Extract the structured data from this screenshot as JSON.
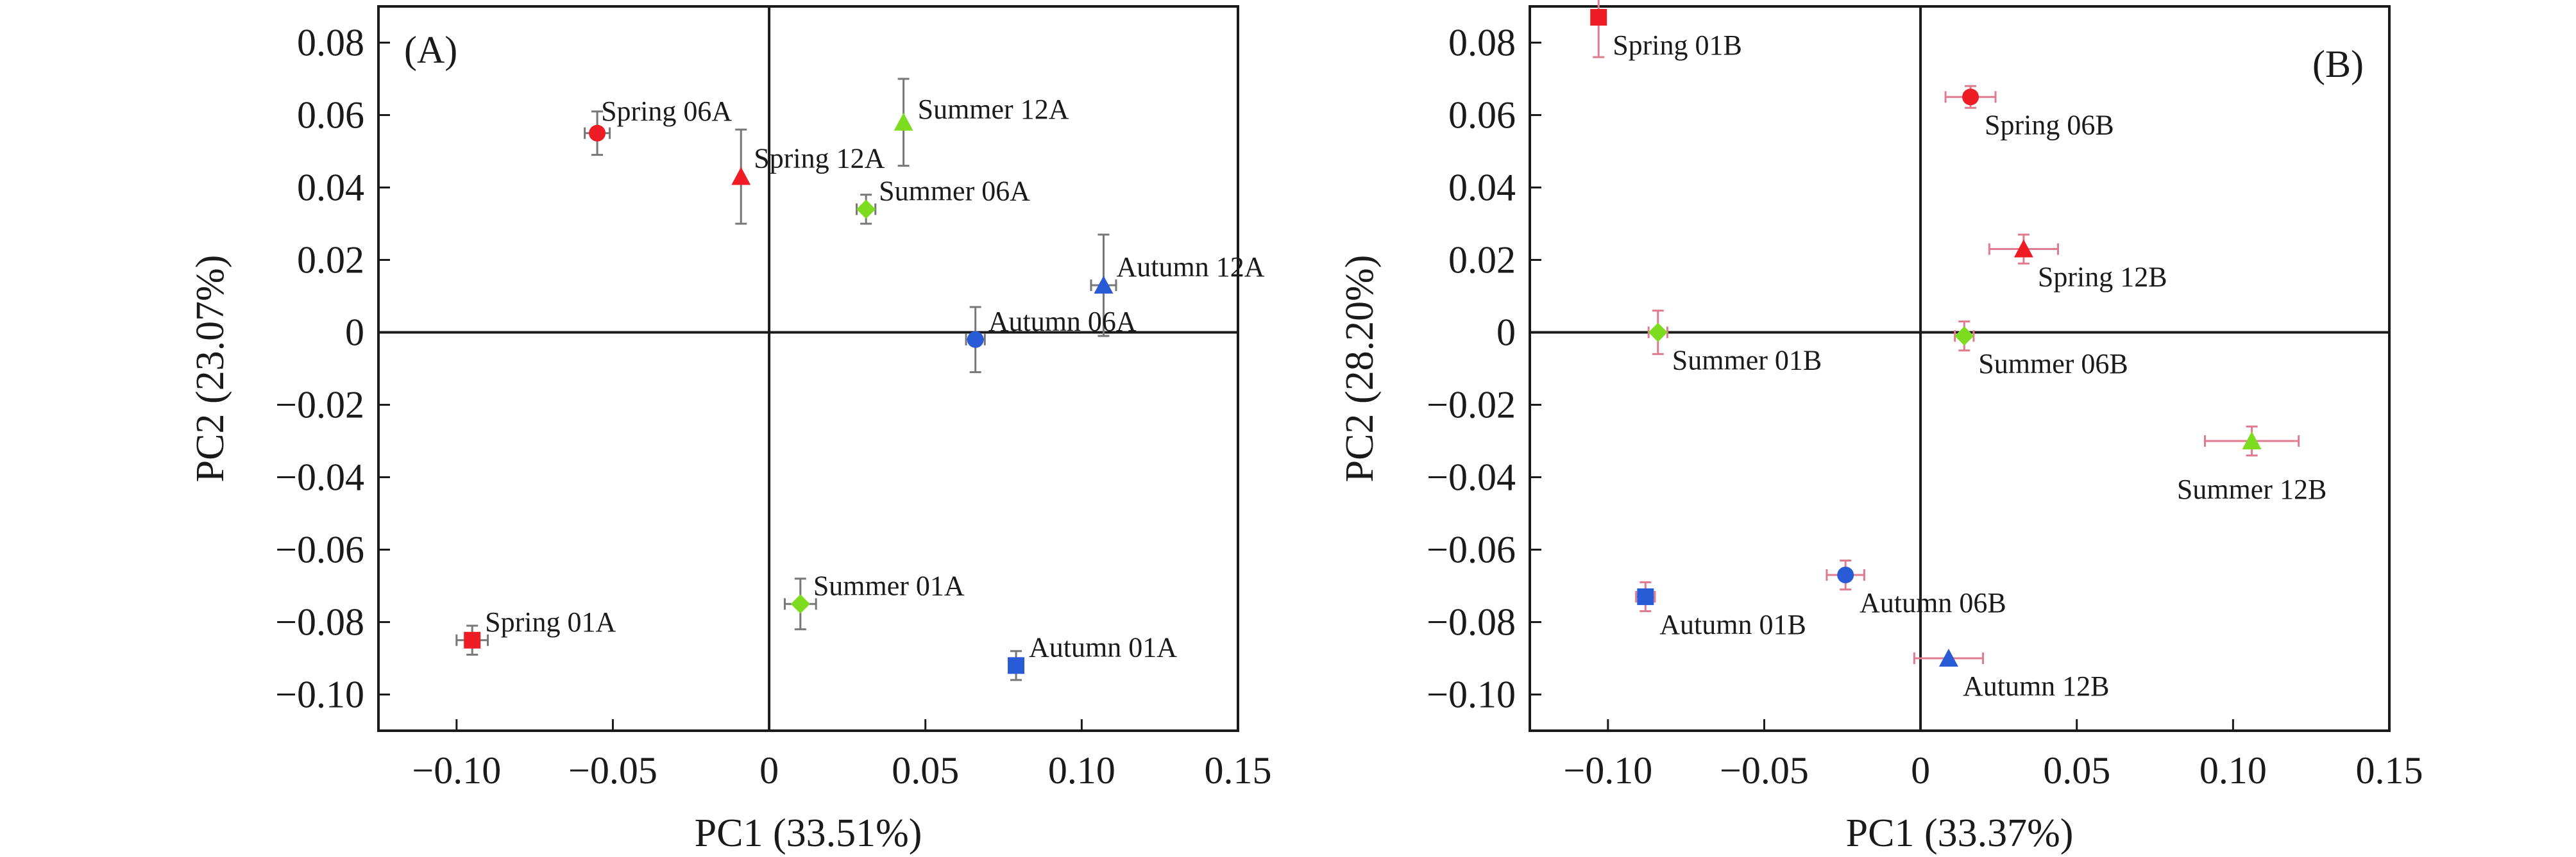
{
  "chart_data": [
    {
      "type": "scatter",
      "panel_label": "(A)",
      "xlabel": "PC1 (33.51%)",
      "ylabel": "PC2 (23.07%)",
      "xlim": [
        -0.125,
        0.15
      ],
      "ylim": [
        -0.11,
        0.09
      ],
      "xticks": [
        -0.1,
        -0.05,
        0,
        0.05,
        0.1,
        0.15
      ],
      "xtick_labels": [
        "−0.10",
        "−0.05",
        "0",
        "0.05",
        "0.10",
        "0.15"
      ],
      "yticks": [
        0.08,
        0.06,
        0.04,
        0.02,
        0,
        -0.02,
        -0.04,
        -0.06,
        -0.08,
        -0.1
      ],
      "ytick_labels": [
        "0.08",
        "0.06",
        "0.04",
        "0.02",
        "0",
        "−0.02",
        "−0.04",
        "−0.06",
        "−0.08",
        "−0.10"
      ],
      "error_bar_color": "#777777",
      "points": [
        {
          "label": "Spring 06A",
          "x": -0.055,
          "y": 0.055,
          "xerr": 0.004,
          "yerr": 0.006,
          "marker": "circle",
          "color": "#ee1c25",
          "label_pos": "above-right"
        },
        {
          "label": "Spring 12A",
          "x": -0.009,
          "y": 0.043,
          "xerr": 0.0,
          "yerr": 0.013,
          "marker": "triangle",
          "color": "#ee1c25",
          "label_pos": "right-high"
        },
        {
          "label": "Summer 12A",
          "x": 0.043,
          "y": 0.058,
          "xerr": 0.0,
          "yerr": 0.012,
          "marker": "triangle",
          "color": "#7ddc1f",
          "label_pos": "right"
        },
        {
          "label": "Summer 06A",
          "x": 0.031,
          "y": 0.034,
          "xerr": 0.003,
          "yerr": 0.004,
          "marker": "diamond",
          "color": "#7ddc1f",
          "label_pos": "right-high"
        },
        {
          "label": "Autumn 12A",
          "x": 0.107,
          "y": 0.013,
          "xerr": 0.004,
          "yerr": 0.014,
          "marker": "triangle",
          "color": "#2a5bd7",
          "label_pos": "right-high"
        },
        {
          "label": "Autumn 06A",
          "x": 0.066,
          "y": -0.002,
          "xerr": 0.003,
          "yerr": 0.009,
          "marker": "circle",
          "color": "#2a5bd7",
          "label_pos": "right-high"
        },
        {
          "label": "Spring 01A",
          "x": -0.095,
          "y": -0.085,
          "xerr": 0.005,
          "yerr": 0.004,
          "marker": "square",
          "color": "#ee1c25",
          "label_pos": "right-high"
        },
        {
          "label": "Summer 01A",
          "x": 0.01,
          "y": -0.075,
          "xerr": 0.005,
          "yerr": 0.007,
          "marker": "diamond",
          "color": "#7ddc1f",
          "label_pos": "right-high"
        },
        {
          "label": "Autumn 01A",
          "x": 0.079,
          "y": -0.092,
          "xerr": 0.0,
          "yerr": 0.004,
          "marker": "square",
          "color": "#2a5bd7",
          "label_pos": "right-high"
        }
      ]
    },
    {
      "type": "scatter",
      "panel_label": "(B)",
      "xlabel": "PC1 (33.37%)",
      "ylabel": "PC2 (28.20%)",
      "xlim": [
        -0.125,
        0.15
      ],
      "ylim": [
        -0.11,
        0.09
      ],
      "xticks": [
        -0.1,
        -0.05,
        0,
        0.05,
        0.1,
        0.15
      ],
      "xtick_labels": [
        "−0.10",
        "−0.05",
        "0",
        "0.05",
        "0.10",
        "0.15"
      ],
      "yticks": [
        0.08,
        0.06,
        0.04,
        0.02,
        0,
        -0.02,
        -0.04,
        -0.06,
        -0.08,
        -0.1
      ],
      "ytick_labels": [
        "0.08",
        "0.06",
        "0.04",
        "0.02",
        "0",
        "−0.02",
        "−0.04",
        "−0.06",
        "−0.08",
        "−0.10"
      ],
      "error_bar_color": "#e07a8f",
      "points": [
        {
          "label": "Spring 01B",
          "x": -0.103,
          "y": 0.087,
          "xerr": 0.0,
          "yerr": 0.011,
          "marker": "square",
          "color": "#ee1c25",
          "label_pos": "below-right"
        },
        {
          "label": "Spring 06B",
          "x": 0.016,
          "y": 0.065,
          "xerr": 0.008,
          "yerr": 0.003,
          "marker": "circle",
          "color": "#ee1c25",
          "label_pos": "below-right"
        },
        {
          "label": "Spring 12B",
          "x": 0.033,
          "y": 0.023,
          "xerr": 0.011,
          "yerr": 0.004,
          "marker": "triangle",
          "color": "#ee1c25",
          "label_pos": "below-right"
        },
        {
          "label": "Summer 01B",
          "x": -0.084,
          "y": 0.0,
          "xerr": 0.003,
          "yerr": 0.006,
          "marker": "diamond",
          "color": "#7ddc1f",
          "label_pos": "below-right"
        },
        {
          "label": "Summer 06B",
          "x": 0.014,
          "y": -0.001,
          "xerr": 0.003,
          "yerr": 0.004,
          "marker": "diamond",
          "color": "#7ddc1f",
          "label_pos": "below-right"
        },
        {
          "label": "Summer 12B",
          "x": 0.106,
          "y": -0.03,
          "xerr": 0.015,
          "yerr": 0.004,
          "marker": "triangle",
          "color": "#7ddc1f",
          "label_pos": "below-center"
        },
        {
          "label": "Autumn 01B",
          "x": -0.088,
          "y": -0.073,
          "xerr": 0.003,
          "yerr": 0.004,
          "marker": "square",
          "color": "#2a5bd7",
          "label_pos": "below-right"
        },
        {
          "label": "Autumn 06B",
          "x": -0.024,
          "y": -0.067,
          "xerr": 0.006,
          "yerr": 0.004,
          "marker": "circle",
          "color": "#2a5bd7",
          "label_pos": "below-right"
        },
        {
          "label": "Autumn 12B",
          "x": 0.009,
          "y": -0.09,
          "xerr": 0.011,
          "yerr": 0.0,
          "marker": "triangle",
          "color": "#2a5bd7",
          "label_pos": "below-right"
        }
      ]
    }
  ]
}
